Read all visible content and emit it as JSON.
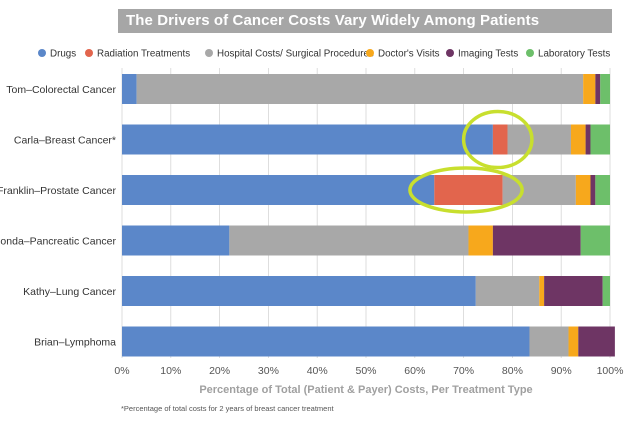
{
  "chart_data": {
    "type": "bar",
    "orientation": "horizontal",
    "stacked": true,
    "title": "The Drivers of Cancer Costs Vary Widely Among Patients",
    "xlabel": "Percentage of Total (Patient & Payer) Costs, Per Treatment Type",
    "xlim": [
      0,
      100
    ],
    "xticks": [
      "0%",
      "10%",
      "20%",
      "30%",
      "40%",
      "50%",
      "60%",
      "70%",
      "80%",
      "90%",
      "100%"
    ],
    "legend_position": "top",
    "categories": [
      "Tom–Colorectal Cancer",
      "Carla–Breast Cancer*",
      "Franklin–Prostate Cancer",
      "Shonda–Pancreatic Cancer",
      "Kathy–Lung Cancer",
      "Brian–Lymphoma"
    ],
    "series": [
      {
        "name": "Drugs",
        "color": "#5b87c9",
        "values": [
          3,
          76,
          64,
          22,
          72.5,
          83.5
        ]
      },
      {
        "name": "Radiation Treatments",
        "color": "#e2654d",
        "values": [
          0,
          3,
          14,
          0,
          0,
          0
        ]
      },
      {
        "name": "Hospital Costs/ Surgical Procedures",
        "color": "#a8a8a8",
        "values": [
          91.5,
          13,
          15,
          49,
          13,
          8
        ]
      },
      {
        "name": "Doctor's Visits",
        "color": "#f7a81c",
        "values": [
          2.5,
          3,
          3,
          5,
          1,
          2
        ]
      },
      {
        "name": "Imaging Tests",
        "color": "#6e3564",
        "values": [
          1,
          1,
          1,
          18,
          12,
          7.5
        ]
      },
      {
        "name": "Laboratory Tests",
        "color": "#6dbf6a",
        "values": [
          2,
          4,
          3,
          6,
          1.5,
          0
        ]
      }
    ],
    "annotations": [
      {
        "type": "circle",
        "color": "#c8df2e",
        "row": 1,
        "x_range": [
          70,
          84
        ]
      },
      {
        "type": "ellipse",
        "color": "#c8df2e",
        "row": 2,
        "x_range": [
          59,
          82
        ]
      }
    ],
    "footnote": "*Percentage of total costs for 2 years of breast cancer treatment"
  }
}
